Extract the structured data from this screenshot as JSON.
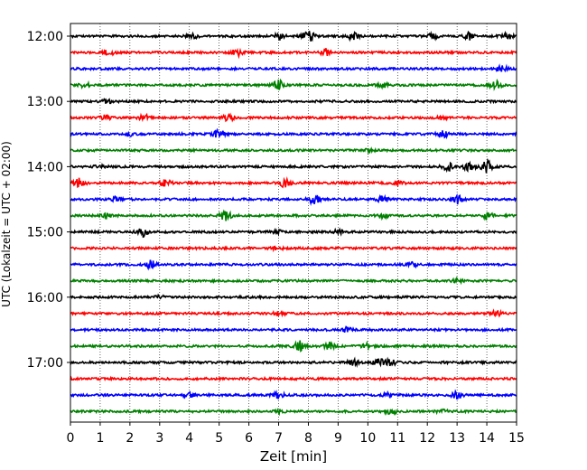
{
  "chart_data": {
    "type": "line",
    "title": "",
    "xlabel": "Zeit  [min]",
    "ylabel": "UTC (Lokalzeit = UTC + 02:00)",
    "xlim": [
      0,
      15
    ],
    "x_ticks": [
      "0",
      "1",
      "2",
      "3",
      "4",
      "5",
      "6",
      "7",
      "8",
      "9",
      "10",
      "11",
      "12",
      "13",
      "14",
      "15"
    ],
    "y_tick_labels": [
      "12:00",
      "13:00",
      "14:00",
      "15:00",
      "16:00",
      "17:00"
    ],
    "y_tick_rows": [
      0,
      4,
      8,
      12,
      16,
      20
    ],
    "grid": "vertical dotted at each minute",
    "trace_colors": [
      "#000000",
      "#ff0000",
      "#0000ff",
      "#008000"
    ],
    "rows": [
      {
        "start": "12:00",
        "events": [
          [
            4.1,
            0.4
          ],
          [
            7.0,
            0.5
          ],
          [
            8.0,
            1.0
          ],
          [
            9.5,
            0.6
          ],
          [
            12.2,
            0.4
          ],
          [
            13.4,
            0.6
          ],
          [
            14.7,
            0.5
          ]
        ]
      },
      {
        "start": "12:15",
        "events": [
          [
            1.3,
            0.5
          ],
          [
            5.6,
            0.6
          ],
          [
            8.6,
            0.6
          ]
        ]
      },
      {
        "start": "12:30",
        "events": [
          [
            14.5,
            0.7
          ]
        ]
      },
      {
        "start": "12:45",
        "events": [
          [
            0.5,
            0.4
          ],
          [
            7.0,
            0.8
          ],
          [
            10.5,
            0.4
          ],
          [
            14.3,
            0.7
          ]
        ]
      },
      {
        "start": "13:00",
        "events": [
          [
            1.2,
            0.4
          ]
        ]
      },
      {
        "start": "13:15",
        "events": [
          [
            1.2,
            0.5
          ],
          [
            2.5,
            0.5
          ],
          [
            5.3,
            0.6
          ],
          [
            12.5,
            0.4
          ]
        ]
      },
      {
        "start": "13:30",
        "events": [
          [
            2.0,
            0.3
          ],
          [
            5.0,
            0.7
          ],
          [
            12.5,
            0.6
          ]
        ]
      },
      {
        "start": "13:45",
        "events": [
          [
            10.0,
            0.2
          ]
        ]
      },
      {
        "start": "14:00",
        "events": [
          [
            1.0,
            0.3
          ],
          [
            12.7,
            0.6
          ],
          [
            13.4,
            0.7
          ],
          [
            14.0,
            1.0
          ]
        ]
      },
      {
        "start": "14:15",
        "events": [
          [
            0.3,
            0.8
          ],
          [
            3.2,
            0.6
          ],
          [
            7.2,
            0.7
          ],
          [
            11.0,
            0.4
          ]
        ]
      },
      {
        "start": "14:30",
        "events": [
          [
            1.5,
            0.4
          ],
          [
            8.2,
            0.8
          ],
          [
            10.5,
            0.6
          ],
          [
            13.0,
            0.8
          ]
        ]
      },
      {
        "start": "14:45",
        "events": [
          [
            1.2,
            0.6
          ],
          [
            5.2,
            0.9
          ],
          [
            10.5,
            0.4
          ],
          [
            14.0,
            0.7
          ]
        ]
      },
      {
        "start": "15:00",
        "events": [
          [
            2.4,
            0.8
          ],
          [
            7.0,
            0.3
          ],
          [
            9.0,
            0.3
          ]
        ]
      },
      {
        "start": "15:15",
        "events": [
          [
            7.0,
            0.3
          ]
        ]
      },
      {
        "start": "15:30",
        "events": [
          [
            2.7,
            0.7
          ],
          [
            11.5,
            0.3
          ]
        ]
      },
      {
        "start": "15:45",
        "events": [
          [
            13.0,
            0.3
          ]
        ]
      },
      {
        "start": "16:00",
        "events": [
          [
            3.0,
            0.2
          ]
        ]
      },
      {
        "start": "16:15",
        "events": [
          [
            7.0,
            0.3
          ],
          [
            14.3,
            0.5
          ]
        ]
      },
      {
        "start": "16:30",
        "events": [
          [
            9.3,
            0.4
          ]
        ]
      },
      {
        "start": "16:45",
        "events": [
          [
            7.7,
            0.9
          ],
          [
            8.7,
            0.5
          ],
          [
            10.0,
            0.4
          ]
        ]
      },
      {
        "start": "17:00",
        "events": [
          [
            9.5,
            0.5
          ],
          [
            10.4,
            0.9
          ],
          [
            10.8,
            0.5
          ]
        ]
      },
      {
        "start": "17:15",
        "events": []
      },
      {
        "start": "17:30",
        "events": [
          [
            4.0,
            0.6
          ],
          [
            7.0,
            0.5
          ],
          [
            10.7,
            0.5
          ],
          [
            13.0,
            0.6
          ]
        ]
      },
      {
        "start": "17:45",
        "events": [
          [
            7.0,
            0.3
          ],
          [
            10.8,
            0.5
          ],
          [
            12.5,
            0.3
          ]
        ]
      }
    ]
  }
}
